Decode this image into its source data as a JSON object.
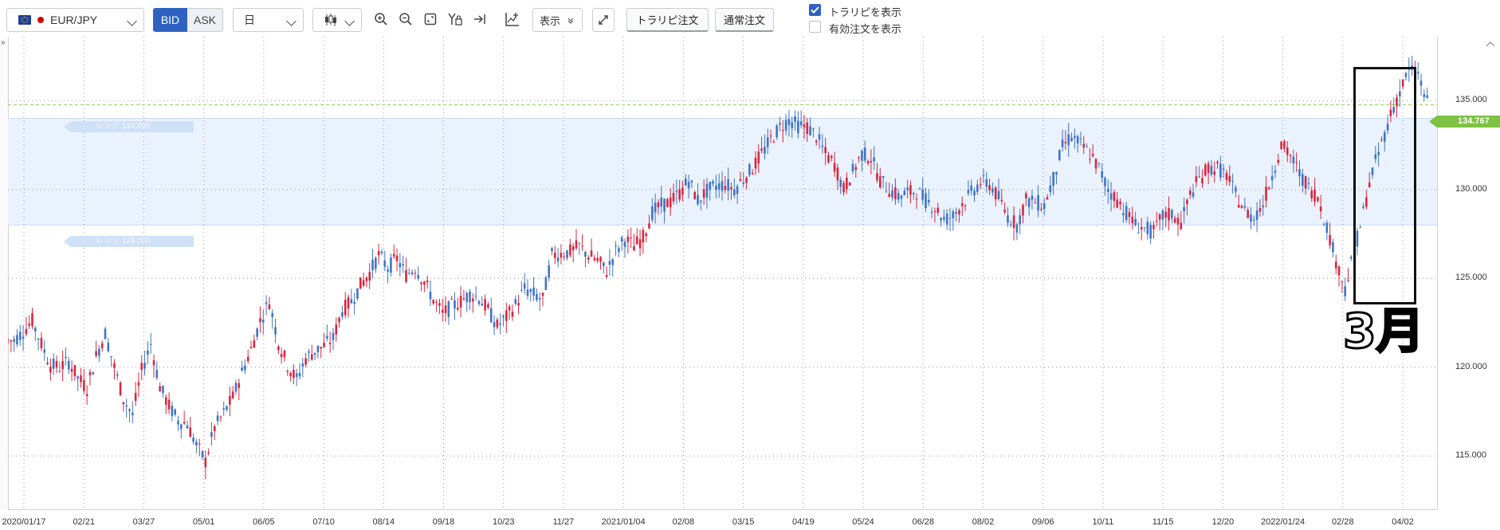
{
  "toolbar": {
    "symbol": "EUR/JPY",
    "bid_label": "BID",
    "ask_label": "ASK",
    "timeframe": "日",
    "display_label": "表示",
    "tralipi_order_label": "トラリピ注文",
    "normal_order_label": "通常注文",
    "show_tralipi_label": "トラリピを表示",
    "show_tralipi_checked": true,
    "show_active_orders_label": "有効注文を表示",
    "show_active_orders_checked": false,
    "icons": [
      "eu-flag-icon",
      "candlestick-icon",
      "zoom-in-icon",
      "zoom-out-icon",
      "fit-screen-icon",
      "y-lock-icon",
      "scroll-to-end-icon",
      "indicator-icon",
      "fullscreen-icon"
    ]
  },
  "panel_toggle": "»",
  "current_price": "134.767",
  "range_upper_label": "レンジ 134.000",
  "range_lower_label": "レンジ 128.000",
  "annotation_text": "3月",
  "colors": {
    "up": "#d9263f",
    "down": "#3f74c6",
    "range_band": "#eaf2fd",
    "price_tag": "#7dc243",
    "active": "#2f62c0"
  },
  "chart_data": {
    "type": "candlestick",
    "title": "",
    "xlabel": "",
    "ylabel": "",
    "ylim": [
      112.0,
      138.6
    ],
    "y_ticks": [
      "115.000",
      "120.000",
      "125.000",
      "130.000",
      "135.000"
    ],
    "x_ticks": [
      "2020/01/17",
      "02/21",
      "03/27",
      "05/01",
      "06/05",
      "07/10",
      "08/14",
      "09/18",
      "10/23",
      "11/27",
      "2021/01/04",
      "02/08",
      "03/15",
      "04/19",
      "05/24",
      "06/28",
      "08/02",
      "09/06",
      "10/11",
      "11/15",
      "12/20",
      "2022/01/24",
      "02/28",
      "04/02"
    ],
    "current_price_line": 134.767,
    "range_band": [
      128.0,
      134.0
    ],
    "series": [
      {
        "values": [
          121.5,
          122.0,
          122.6,
          121.3,
          120.1,
          120.0,
          120.3,
          119.4,
          118.8,
          120.6,
          121.9,
          120.0,
          118.2,
          117.3,
          119.8,
          121.3,
          118.9,
          117.8,
          117.0,
          116.8,
          115.6,
          114.7,
          116.6,
          117.4,
          118.3,
          119.7,
          121.0,
          122.6,
          123.7,
          121.4,
          120.1,
          119.3,
          120.5,
          120.9,
          121.2,
          121.6,
          123.2,
          123.7,
          124.6,
          125.3,
          126.3,
          125.6,
          126.1,
          125.2,
          125.6,
          124.8,
          123.8,
          123.0,
          123.4,
          123.7,
          124.1,
          123.9,
          123.2,
          122.3,
          122.8,
          123.5,
          124.4,
          124.1,
          123.8,
          126.3,
          126.4,
          126.5,
          126.8,
          126.3,
          126.0,
          125.4,
          126.5,
          127.2,
          126.8,
          127.3,
          128.7,
          129.1,
          129.3,
          129.8,
          130.5,
          129.4,
          129.9,
          130.2,
          130.3,
          130.0,
          130.6,
          131.2,
          132.0,
          132.8,
          133.5,
          133.9,
          133.6,
          133.5,
          133.0,
          132.0,
          131.4,
          130.0,
          131.0,
          132.0,
          131.8,
          130.5,
          130.0,
          129.6,
          129.8,
          129.9,
          129.4,
          129.0,
          128.3,
          128.5,
          129.2,
          129.8,
          130.4,
          130.3,
          129.5,
          128.5,
          128.0,
          129.4,
          129.3,
          129.1,
          130.6,
          132.4,
          133.0,
          132.5,
          132.0,
          131.2,
          130.0,
          129.4,
          128.7,
          128.0,
          127.8,
          127.6,
          128.5,
          128.6,
          128.1,
          129.7,
          130.6,
          131.2,
          131.2,
          130.8,
          129.7,
          128.8,
          128.4,
          129.2,
          130.8,
          132.5,
          131.9,
          130.9,
          130.1,
          129.6,
          127.9,
          126.0,
          124.4,
          126.5,
          128.7,
          131.0,
          132.6,
          134.2,
          135.5,
          136.7,
          136.5,
          134.9
        ]
      }
    ]
  }
}
